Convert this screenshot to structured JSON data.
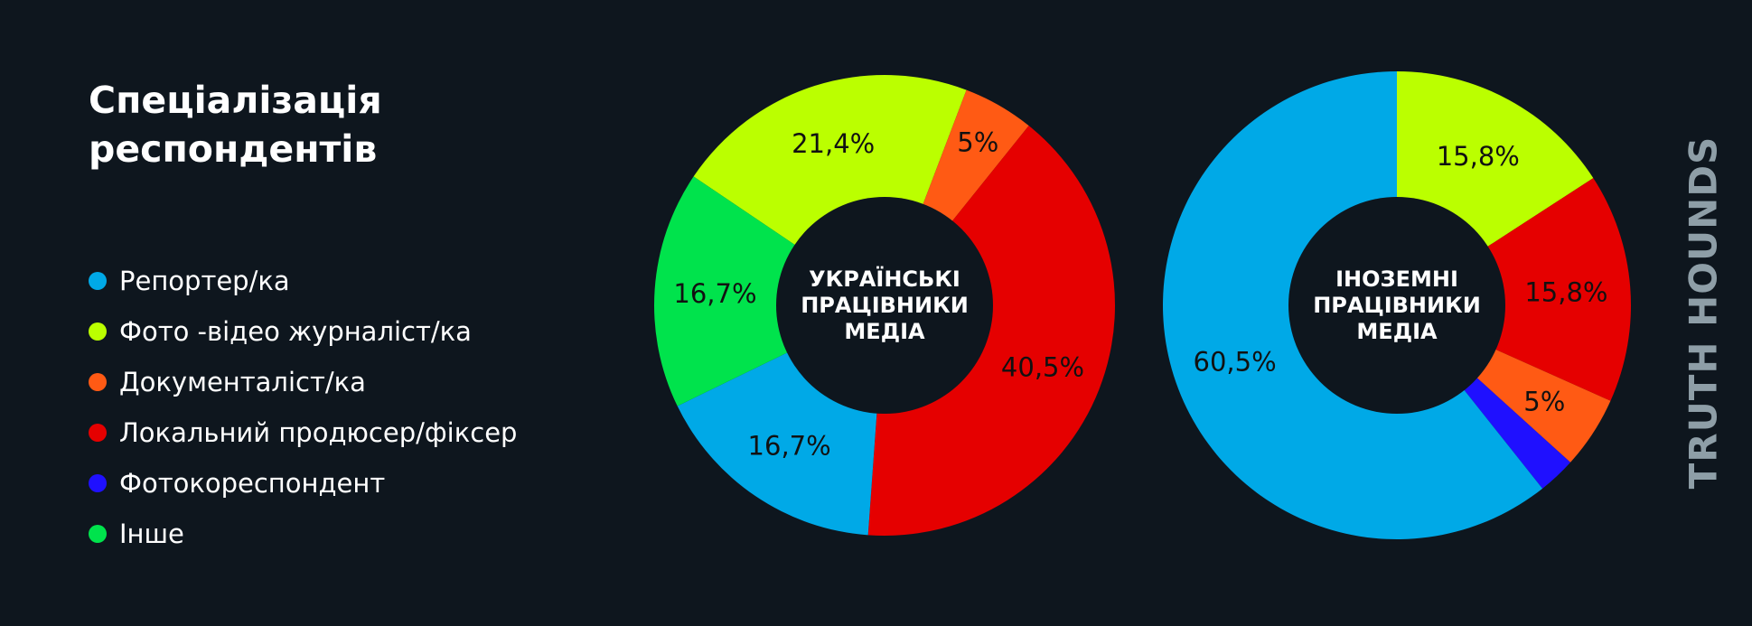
{
  "title_lines": [
    "Спеціалізація",
    "респондентів"
  ],
  "legend": [
    {
      "label": "Репортер/ка",
      "color": "#00a9e7"
    },
    {
      "label": "Фото -відео журналіст/ка",
      "color": "#bbff00"
    },
    {
      "label": "Документаліст/ка",
      "color": "#ff5a14"
    },
    {
      "label": "Локальний продюсер/фіксер",
      "color": "#e50000"
    },
    {
      "label": "Фотокореспондент",
      "color": "#1f10ff"
    },
    {
      "label": "Інше",
      "color": "#00e34c"
    }
  ],
  "logo_text": "TRUTH HOUNDS",
  "chart_data": [
    {
      "type": "pie",
      "donut": true,
      "center_label_lines": [
        "УКРАЇНСЬКІ",
        "ПРАЦІВНИКИ",
        "МЕДІА"
      ],
      "slices": [
        {
          "category": "Фото -відео журналіст/ка",
          "value": 21.4,
          "label": "21,4%",
          "color": "#bbff00"
        },
        {
          "category": "Документаліст/ка",
          "value": 5,
          "label": "5%",
          "color": "#ff5a14"
        },
        {
          "category": "Локальний продюсер/фіксер",
          "value": 40.5,
          "label": "40,5%",
          "color": "#e50000"
        },
        {
          "category": "Репортер/ка",
          "value": 16.7,
          "label": "16,7%",
          "color": "#00a9e7"
        },
        {
          "category": "Інше",
          "value": 16.7,
          "label": "16,7%",
          "color": "#00e34c"
        }
      ]
    },
    {
      "type": "pie",
      "donut": true,
      "center_label_lines": [
        "ІНОЗЕМНІ",
        "ПРАЦІВНИКИ",
        "МЕДІА"
      ],
      "slices": [
        {
          "category": "Фото -відео журналіст/ка",
          "value": 15.8,
          "label": "15,8%",
          "color": "#bbff00"
        },
        {
          "category": "Локальний продюсер/фіксер",
          "value": 15.8,
          "label": "15,8%",
          "color": "#e50000"
        },
        {
          "category": "Документаліст/ка",
          "value": 5,
          "label": "5%",
          "color": "#ff5a14"
        },
        {
          "category": "Фотокореспондент",
          "value": 2.6,
          "label": "",
          "color": "#1f10ff"
        },
        {
          "category": "Репортер/ка",
          "value": 60.5,
          "label": "60,5%",
          "color": "#00a9e7"
        }
      ]
    }
  ]
}
